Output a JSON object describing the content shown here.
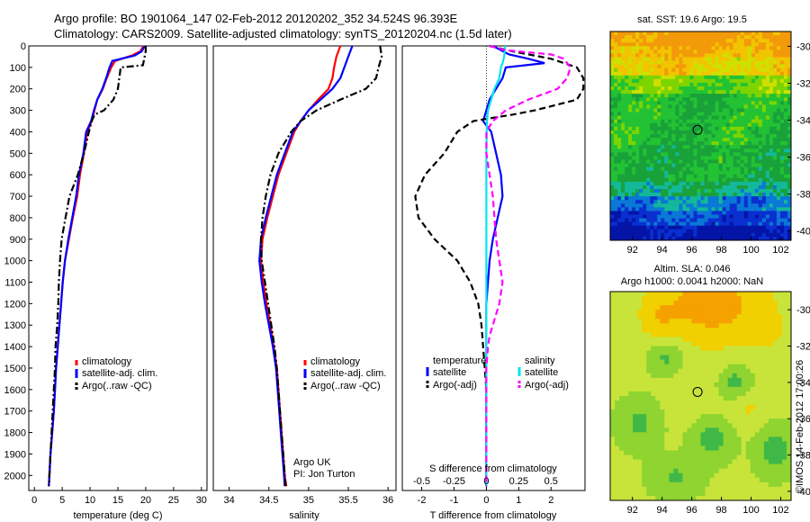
{
  "header": {
    "line1": "Argo profile: BO 1901064_147 02-Feb-2012 20120202_352 34.524S 96.393E",
    "line2": "Climatology: CARS2009. Satellite-adjusted climatology: synTS_20120204.nc (1.5d later)"
  },
  "colors": {
    "climatology": "#ff0000",
    "satellite": "#0000ff",
    "argo": "#000000",
    "satellite_salinity": "#00e5ee",
    "argo_salinity": "#ff00ff"
  },
  "chart_data": [
    {
      "id": "temperature",
      "type": "line",
      "xlabel": "temperature (deg C)",
      "xlim": [
        -1,
        31
      ],
      "xticks": [
        "0",
        "5",
        "10",
        "15",
        "20",
        "25",
        "30"
      ],
      "ylim": [
        0,
        2070
      ],
      "yticks": [
        "0",
        "100",
        "200",
        "300",
        "400",
        "500",
        "600",
        "700",
        "800",
        "900",
        "1000",
        "1100",
        "1200",
        "1300",
        "1400",
        "1500",
        "1600",
        "1700",
        "1800",
        "1900",
        "2000"
      ],
      "legend": [
        "climatology",
        "satellite-adj. clim.",
        "Argo(..raw -QC)"
      ],
      "series": [
        {
          "name": "climatology",
          "style": "solid",
          "color": "#ff0000",
          "x": [
            19.6,
            19.0,
            17.5,
            14.5,
            13.8,
            13.0,
            12.3,
            11.3,
            10.8,
            10.3,
            9.5,
            8.9,
            8.2,
            7.7,
            6.9,
            6.2,
            5.5,
            5.1,
            4.8,
            4.5,
            4.2,
            3.9,
            3.7,
            3.5,
            3.2,
            2.9,
            2.6
          ],
          "y": [
            0,
            25,
            45,
            70,
            100,
            150,
            200,
            250,
            300,
            350,
            400,
            500,
            600,
            700,
            800,
            900,
            1000,
            1100,
            1200,
            1300,
            1400,
            1500,
            1600,
            1700,
            1800,
            1900,
            2050
          ]
        },
        {
          "name": "satellite-adj. clim.",
          "style": "solid",
          "color": "#0000ff",
          "x": [
            19.8,
            19.3,
            18.0,
            14.0,
            13.5,
            12.9,
            12.2,
            11.3,
            10.7,
            10.2,
            9.3,
            8.8,
            8.0,
            7.5,
            6.8,
            6.1,
            5.5,
            5.1,
            4.8,
            4.5,
            4.2,
            3.9,
            3.7,
            3.5,
            3.2,
            2.9,
            2.6
          ],
          "y": [
            0,
            25,
            45,
            70,
            100,
            150,
            200,
            250,
            300,
            350,
            400,
            500,
            600,
            700,
            800,
            900,
            1000,
            1100,
            1200,
            1300,
            1400,
            1500,
            1600,
            1700,
            1800,
            1900,
            2050
          ]
        },
        {
          "name": "Argo(..raw -QC)",
          "style": "dashdot",
          "color": "#000000",
          "x": [
            20.0,
            20.0,
            19.8,
            19.5,
            15.5,
            15.0,
            14.2,
            12.5,
            10.8,
            10.3,
            9.8,
            8.9,
            7.8,
            6.3,
            5.6,
            4.9,
            4.6,
            4.4,
            4.3,
            4.1,
            3.8,
            3.7,
            3.5,
            3.3,
            3.1,
            2.9,
            2.6
          ],
          "y": [
            0,
            25,
            50,
            90,
            100,
            200,
            250,
            300,
            320,
            350,
            400,
            500,
            600,
            700,
            800,
            900,
            1000,
            1100,
            1200,
            1300,
            1400,
            1500,
            1600,
            1700,
            1800,
            1900,
            2050
          ]
        }
      ]
    },
    {
      "id": "salinity",
      "type": "line",
      "xlabel": "salinity",
      "xlim": [
        33.8,
        36.1
      ],
      "xticks": [
        "34",
        "34.5",
        "35",
        "35.5",
        "36"
      ],
      "ylim": [
        0,
        2070
      ],
      "legend": [
        "climatology",
        "satellite-adj. clim.",
        "Argo(..raw -QC)"
      ],
      "annotation": [
        "Argo UK",
        "PI: Jon Turton"
      ],
      "series": [
        {
          "name": "climatology",
          "style": "solid",
          "color": "#ff0000",
          "x": [
            35.4,
            35.35,
            35.32,
            35.3,
            35.25,
            35.12,
            35.0,
            34.9,
            34.82,
            34.72,
            34.62,
            34.55,
            34.48,
            34.42,
            34.4,
            34.43,
            34.47,
            34.52,
            34.56,
            34.6,
            34.62,
            34.64,
            34.66,
            34.68,
            34.7,
            34.72
          ],
          "y": [
            0,
            50,
            100,
            150,
            200,
            250,
            300,
            350,
            400,
            500,
            600,
            700,
            800,
            900,
            1000,
            1100,
            1200,
            1300,
            1400,
            1500,
            1600,
            1700,
            1800,
            1900,
            2000,
            2050
          ]
        },
        {
          "name": "satellite-adj. clim.",
          "style": "solid",
          "color": "#0000ff",
          "x": [
            35.55,
            35.5,
            35.45,
            35.4,
            35.3,
            35.15,
            35.0,
            34.9,
            34.8,
            34.7,
            34.6,
            34.53,
            34.46,
            34.4,
            34.38,
            34.41,
            34.45,
            34.5,
            34.55,
            34.59,
            34.61,
            34.63,
            34.65,
            34.67,
            34.69,
            34.7
          ],
          "y": [
            0,
            50,
            100,
            150,
            200,
            250,
            300,
            350,
            400,
            500,
            600,
            700,
            800,
            900,
            1000,
            1100,
            1200,
            1300,
            1400,
            1500,
            1600,
            1700,
            1800,
            1900,
            2000,
            2050
          ]
        },
        {
          "name": "Argo(..raw -QC)",
          "style": "dashdot",
          "color": "#000000",
          "x": [
            35.9,
            35.92,
            35.88,
            35.85,
            35.72,
            35.4,
            35.1,
            34.9,
            34.78,
            34.62,
            34.52,
            34.46,
            34.42,
            34.4,
            34.41,
            34.45,
            34.49,
            34.53,
            34.57,
            34.6,
            34.62,
            34.64,
            34.66,
            34.68,
            34.7,
            34.71
          ],
          "y": [
            0,
            50,
            100,
            150,
            200,
            250,
            300,
            350,
            400,
            500,
            600,
            700,
            800,
            900,
            1000,
            1100,
            1200,
            1300,
            1400,
            1500,
            1600,
            1700,
            1800,
            1900,
            2000,
            2050
          ]
        }
      ]
    },
    {
      "id": "difference",
      "type": "line",
      "xlabel": "T difference from climatology",
      "xlabel2": "S difference from climatology",
      "xlim": [
        -2.6,
        3.05
      ],
      "xticks": [
        "-2",
        "-1",
        "0",
        "1",
        "2"
      ],
      "xticks2": [
        "-0.5",
        "-0.25",
        "0",
        "0.25",
        "0.5"
      ],
      "ylim": [
        0,
        2070
      ],
      "legend_temperature_title": "temperature",
      "legend_salinity_title": "salinity",
      "legend_temperature": [
        "satellite",
        "Argo(-adj)"
      ],
      "legend_salinity": [
        "satellite",
        "Argo(-adj)"
      ],
      "series": [
        {
          "name": "satellite",
          "group": "temperature",
          "style": "solid",
          "color": "#0000ff",
          "x": [
            0.2,
            0.7,
            1.3,
            1.8,
            0.6,
            0.5,
            0.3,
            0.1,
            0.0,
            -0.1,
            0.15,
            0.3,
            0.45,
            0.5,
            0.35,
            0.2,
            0.1,
            0.0,
            0.0,
            0.0,
            0.0,
            0.0,
            0.0,
            0.0,
            0.0,
            0.0
          ],
          "y": [
            0,
            40,
            60,
            80,
            100,
            150,
            200,
            250,
            300,
            350,
            400,
            500,
            600,
            700,
            800,
            900,
            1000,
            1200,
            1400,
            1500,
            1600,
            1700,
            1800,
            1900,
            2000,
            2050
          ]
        },
        {
          "name": "Argo(-adj)",
          "group": "temperature",
          "style": "dashed",
          "color": "#000000",
          "x": [
            0.1,
            0.8,
            2.0,
            2.8,
            3.0,
            3.0,
            2.8,
            1.5,
            0.8,
            -0.4,
            -0.9,
            -1.3,
            -1.9,
            -2.2,
            -2.1,
            -1.6,
            -0.9,
            -0.5,
            -0.25,
            -0.15,
            -0.1,
            -0.05,
            0.0,
            0.0,
            0.0,
            0.0
          ],
          "y": [
            0,
            25,
            60,
            100,
            150,
            200,
            250,
            300,
            320,
            350,
            400,
            500,
            600,
            700,
            800,
            900,
            1000,
            1100,
            1200,
            1300,
            1400,
            1500,
            1600,
            1800,
            2000,
            2050
          ]
        },
        {
          "name": "satellite",
          "group": "salinity",
          "style": "solid",
          "color": "#00e5ee",
          "x": [
            0.58,
            0.55,
            0.5,
            0.45,
            0.4,
            0.25,
            0.15,
            0.05,
            0.02,
            0.01,
            0.0,
            0.0,
            0.0,
            0.0,
            0.0,
            0.0,
            0.0,
            0.0,
            0.0,
            0.0,
            0.0
          ],
          "y": [
            0,
            50,
            80,
            100,
            150,
            200,
            250,
            300,
            350,
            400,
            500,
            600,
            800,
            1000,
            1200,
            1400,
            1500,
            1600,
            1800,
            2000,
            2050
          ]
        },
        {
          "name": "Argo(-adj)",
          "group": "salinity",
          "style": "dashed",
          "color": "#ff00ff",
          "x": [
            0.1,
            0.6,
            2.0,
            2.4,
            2.6,
            2.5,
            2.2,
            1.3,
            0.6,
            0.2,
            0.0,
            0.0,
            0.2,
            0.3,
            0.4,
            0.5,
            0.4,
            0.3,
            0.2,
            0.1,
            0.05,
            0.0,
            0.0,
            0.0,
            0.0
          ],
          "y": [
            0,
            20,
            40,
            60,
            100,
            150,
            200,
            250,
            300,
            350,
            400,
            500,
            700,
            900,
            1000,
            1100,
            1200,
            1250,
            1300,
            1350,
            1400,
            1500,
            1700,
            1900,
            2050
          ]
        }
      ]
    },
    {
      "id": "sst_map",
      "type": "heatmap",
      "title": "sat. SST: 19.6  Argo: 19.5",
      "xlim": [
        90.5,
        102.7
      ],
      "ylim": [
        -40.5,
        -29.2
      ],
      "xticks": [
        "92",
        "94",
        "96",
        "98",
        "100",
        "102"
      ],
      "yticks": [
        "-30",
        "-32",
        "-34",
        "-36",
        "-38",
        "-40"
      ],
      "marker": {
        "lon": 96.393,
        "lat": -34.524
      },
      "colors": [
        "#f29a0a",
        "#f2c400",
        "#cfe000",
        "#7ed400",
        "#22c234",
        "#19a13a",
        "#13b89a",
        "#0a78d6",
        "#0a2fd0",
        "#0414a6"
      ]
    },
    {
      "id": "sla_map",
      "type": "heatmap",
      "title1": "Altim. SLA: 0.046",
      "title2": "Argo h1000: 0.0041 h2000: NaN",
      "xlim": [
        90.5,
        102.7
      ],
      "ylim": [
        -40.5,
        -29.0
      ],
      "xticks": [
        "92",
        "94",
        "96",
        "98",
        "100",
        "102"
      ],
      "yticks": [
        "-30",
        "-32",
        "-34",
        "-36",
        "-38",
        "-40"
      ],
      "marker": {
        "lon": 96.393,
        "lat": -34.524
      },
      "colors": [
        "#f5a100",
        "#f0d000",
        "#c8e43a",
        "#8fd430",
        "#40b848",
        "#1c9838"
      ]
    }
  ],
  "credit": "©IMOS 14-Feb-2012 17:00:26"
}
